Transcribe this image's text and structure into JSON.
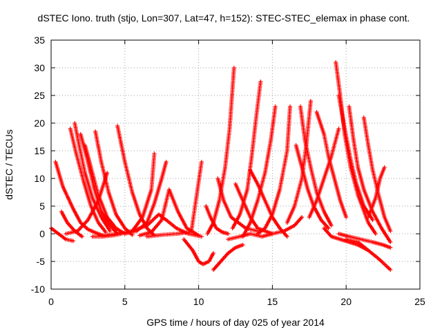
{
  "chart_data": {
    "type": "scatter",
    "title": "dSTEC Iono. truth (stjo, Lon=307, Lat=47, h=152): STEC-STEC_elemax in phase cont.",
    "xlabel": "GPS time / hours of day 025 of year 2014",
    "ylabel": "dSTEC  / TECUs",
    "xlim": [
      0,
      25
    ],
    "ylim": [
      -10,
      35
    ],
    "xticks": [
      0,
      5,
      10,
      15,
      20,
      25
    ],
    "yticks": [
      -10,
      -5,
      0,
      5,
      10,
      15,
      20,
      25,
      30,
      35
    ],
    "grid": true,
    "marker": "+",
    "color": "#ff0000",
    "series": [
      {
        "x": [
          0.0,
          0.5,
          1.0,
          1.5
        ],
        "y": [
          1.0,
          0.0,
          -1.0,
          -1.3
        ]
      },
      {
        "x": [
          0.3,
          0.8,
          1.5,
          2.0,
          2.5,
          3.0,
          3.5
        ],
        "y": [
          13.0,
          8.5,
          4.5,
          2.0,
          0.8,
          0.2,
          -0.3
        ]
      },
      {
        "x": [
          0.7,
          1.1,
          1.6,
          2.1
        ],
        "y": [
          4.0,
          2.0,
          0.5,
          -0.5
        ]
      },
      {
        "x": [
          1.3,
          1.7,
          2.2,
          2.7,
          3.2,
          3.7
        ],
        "y": [
          19.0,
          14.5,
          9.5,
          5.0,
          2.0,
          0.3
        ]
      },
      {
        "x": [
          1.6,
          1.9,
          2.3,
          2.8,
          3.4,
          4.0
        ],
        "y": [
          20.0,
          16.0,
          11.0,
          6.5,
          3.0,
          0.5
        ]
      },
      {
        "x": [
          2.0,
          2.4,
          2.9,
          3.4,
          4.0,
          4.5
        ],
        "y": [
          18.0,
          14.0,
          8.5,
          4.0,
          1.5,
          0.0
        ]
      },
      {
        "x": [
          2.3,
          2.7,
          3.2,
          3.8,
          4.4,
          5.0
        ],
        "y": [
          16.0,
          12.0,
          7.0,
          3.0,
          1.0,
          0.0
        ]
      },
      {
        "x": [
          3.0,
          3.4,
          3.9,
          4.4,
          5.0,
          5.5
        ],
        "y": [
          18.5,
          13.0,
          7.5,
          3.5,
          1.0,
          -0.2
        ]
      },
      {
        "x": [
          1.0,
          1.8,
          2.5,
          3.2,
          3.8
        ],
        "y": [
          0.0,
          0.5,
          2.5,
          6.0,
          11.0
        ]
      },
      {
        "x": [
          2.8,
          3.5,
          4.2,
          4.8
        ],
        "y": [
          -0.5,
          -0.5,
          -0.3,
          0.0
        ]
      },
      {
        "x": [
          4.5,
          5.0,
          5.5,
          6.0,
          6.5,
          7.0
        ],
        "y": [
          19.5,
          13.0,
          7.5,
          3.5,
          1.0,
          -0.3
        ]
      },
      {
        "x": [
          3.5,
          4.5,
          5.5,
          6.2,
          6.8,
          7.0
        ],
        "y": [
          -0.3,
          0.0,
          0.5,
          3.0,
          8.0,
          14.5
        ]
      },
      {
        "x": [
          5.0,
          5.8,
          6.5,
          7.0,
          7.5,
          7.8
        ],
        "y": [
          0.0,
          0.5,
          2.0,
          5.5,
          10.0,
          13.0
        ]
      },
      {
        "x": [
          6.0,
          6.8,
          7.5,
          8.0,
          8.6,
          9.2,
          10.0
        ],
        "y": [
          -0.3,
          0.3,
          2.5,
          8.0,
          4.0,
          1.0,
          -0.3
        ]
      },
      {
        "x": [
          5.5,
          6.5,
          7.3,
          7.8,
          8.5,
          9.3,
          10.2
        ],
        "y": [
          0.5,
          1.5,
          3.5,
          2.5,
          1.0,
          0.0,
          -0.5
        ]
      },
      {
        "x": [
          6.5,
          7.5,
          8.5,
          9.5,
          10.2
        ],
        "y": [
          -0.5,
          -0.2,
          0.0,
          0.3,
          13.0
        ]
      },
      {
        "x": [
          9.0,
          9.6,
          10.0,
          10.3,
          10.7,
          11.0
        ],
        "y": [
          -1.0,
          -3.0,
          -5.0,
          -5.5,
          -5.0,
          -3.5
        ]
      },
      {
        "x": [
          10.5,
          10.8,
          11.2,
          11.6,
          12.0
        ],
        "y": [
          5.0,
          3.0,
          1.0,
          0.3,
          0.0
        ]
      },
      {
        "x": [
          11.0,
          11.5,
          12.0,
          12.5,
          13.0
        ],
        "y": [
          -6.5,
          -5.0,
          -3.5,
          -2.5,
          -2.0
        ]
      },
      {
        "x": [
          10.6,
          11.0,
          11.4,
          11.8,
          12.1,
          12.4
        ],
        "y": [
          0.0,
          2.0,
          6.0,
          12.0,
          19.0,
          30.0
        ]
      },
      {
        "x": [
          11.3,
          11.7,
          12.2,
          12.7,
          13.2,
          14.0
        ],
        "y": [
          10.0,
          6.0,
          3.0,
          2.0,
          1.0,
          0.5
        ]
      },
      {
        "x": [
          12.3,
          12.8,
          13.3,
          13.6,
          13.9,
          14.2
        ],
        "y": [
          1.0,
          3.5,
          8.0,
          14.0,
          21.0,
          27.5
        ]
      },
      {
        "x": [
          12.5,
          13.0,
          13.5,
          14.0,
          14.5,
          15.0
        ],
        "y": [
          9.0,
          6.0,
          3.0,
          1.0,
          0.5,
          0.0
        ]
      },
      {
        "x": [
          13.0,
          13.5,
          14.0,
          14.5,
          14.9,
          15.2
        ],
        "y": [
          -0.5,
          2.0,
          6.0,
          11.0,
          17.0,
          23.0
        ]
      },
      {
        "x": [
          13.5,
          14.0,
          14.5,
          15.0,
          15.5,
          16.0
        ],
        "y": [
          11.5,
          9.0,
          6.0,
          3.0,
          1.0,
          -0.5
        ]
      },
      {
        "x": [
          14.0,
          14.5,
          15.0,
          15.5,
          16.0,
          16.2
        ],
        "y": [
          0.0,
          1.0,
          3.5,
          8.0,
          15.0,
          23.0
        ]
      },
      {
        "x": [
          12.0,
          12.8,
          13.5,
          14.3,
          15.0,
          15.8,
          16.5,
          17.0
        ],
        "y": [
          -1.0,
          -0.5,
          0.0,
          -0.5,
          0.0,
          0.5,
          1.5,
          3.0
        ]
      },
      {
        "x": [
          16.6,
          17.0,
          17.4,
          17.8,
          18.3,
          18.8
        ],
        "y": [
          16.0,
          12.0,
          8.0,
          5.0,
          2.5,
          1.0
        ]
      },
      {
        "x": [
          16.9,
          17.2,
          17.6,
          18.0,
          18.5,
          19.0
        ],
        "y": [
          23.0,
          17.0,
          12.0,
          7.5,
          4.0,
          1.5
        ]
      },
      {
        "x": [
          16.0,
          16.5,
          17.0,
          17.3,
          17.6
        ],
        "y": [
          2.0,
          5.0,
          10.0,
          16.0,
          24.0
        ]
      },
      {
        "x": [
          18.0,
          18.5,
          18.8,
          19.2,
          19.6,
          20.0
        ],
        "y": [
          22.0,
          18.0,
          14.0,
          10.0,
          6.0,
          3.0
        ]
      },
      {
        "x": [
          17.5,
          18.0,
          18.5,
          19.0,
          19.5
        ],
        "y": [
          3.0,
          6.0,
          10.0,
          14.0,
          19.0
        ]
      },
      {
        "x": [
          19.3,
          19.6,
          19.9,
          20.3,
          20.8,
          21.5,
          22.0
        ],
        "y": [
          31.0,
          25.0,
          18.0,
          12.0,
          7.0,
          2.0,
          0.0
        ]
      },
      {
        "x": [
          19.5,
          19.9,
          20.3,
          20.7,
          21.2,
          21.8
        ],
        "y": [
          25.0,
          19.0,
          13.5,
          9.0,
          5.0,
          2.5
        ]
      },
      {
        "x": [
          20.2,
          20.5,
          20.8,
          21.2,
          21.8,
          22.4,
          23.0
        ],
        "y": [
          23.0,
          17.0,
          12.0,
          8.0,
          4.0,
          1.0,
          -1.5
        ]
      },
      {
        "x": [
          21.2,
          21.5,
          21.8,
          22.2,
          22.6,
          23.0
        ],
        "y": [
          21.0,
          16.0,
          11.5,
          7.0,
          3.0,
          0.5
        ]
      },
      {
        "x": [
          18.5,
          19.0,
          19.6,
          20.2,
          20.8,
          21.5
        ],
        "y": [
          1.0,
          -0.5,
          -1.0,
          -1.5,
          -2.0,
          -3.0
        ]
      },
      {
        "x": [
          20.0,
          20.8,
          21.5,
          22.2,
          23.0
        ],
        "y": [
          -1.0,
          -1.5,
          -3.0,
          -4.5,
          -6.5
        ]
      },
      {
        "x": [
          19.5,
          20.2,
          21.0,
          21.8,
          22.5,
          23.0
        ],
        "y": [
          0.0,
          -0.5,
          -1.0,
          -1.5,
          -2.0,
          -2.5
        ]
      },
      {
        "x": [
          21.5,
          22.0,
          22.3,
          22.6
        ],
        "y": [
          3.0,
          6.5,
          10.0,
          12.0
        ]
      }
    ]
  }
}
